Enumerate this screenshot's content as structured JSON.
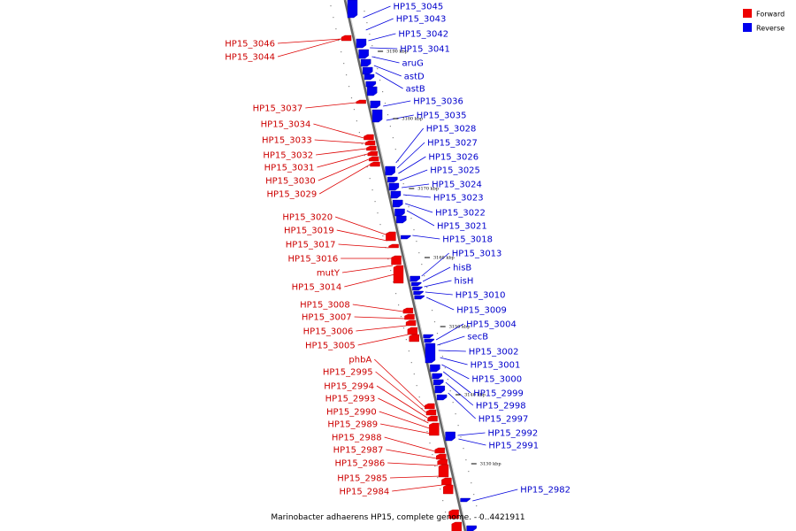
{
  "caption": "Marinobacter adhaerens HP15, complete genome. - 0..4421911",
  "legend": [
    {
      "label": "Forward",
      "color": "#ee0000"
    },
    {
      "label": "Reverse",
      "color": "#0000ee"
    }
  ],
  "scale_ticks": [
    "3190 kbp",
    "3180 kbp",
    "3170 kbp",
    "3160 kbp",
    "3150 kbp",
    "3140 kbp",
    "3130 kbp"
  ],
  "forward_genes": [
    "HP15_3046",
    "HP15_3044",
    "HP15_3037",
    "HP15_3034",
    "HP15_3033",
    "HP15_3032",
    "HP15_3031",
    "HP15_3030",
    "HP15_3029",
    "HP15_3020",
    "HP15_3019",
    "HP15_3017",
    "HP15_3016",
    "mutY",
    "HP15_3014",
    "HP15_3008",
    "HP15_3007",
    "HP15_3006",
    "HP15_3005",
    "phbA",
    "HP15_2995",
    "HP15_2994",
    "HP15_2993",
    "HP15_2990",
    "HP15_2989",
    "HP15_2988",
    "HP15_2987",
    "HP15_2986",
    "HP15_2985",
    "HP15_2984"
  ],
  "reverse_genes": [
    "HP15_3045",
    "HP15_3043",
    "HP15_3042",
    "HP15_3041",
    "aruG",
    "astD",
    "astB",
    "HP15_3036",
    "HP15_3035",
    "HP15_3028",
    "HP15_3027",
    "HP15_3026",
    "HP15_3025",
    "HP15_3024",
    "HP15_3023",
    "HP15_3022",
    "HP15_3021",
    "HP15_3018",
    "HP15_3013",
    "hisB",
    "hisH",
    "HP15_3010",
    "HP15_3009",
    "HP15_3004",
    "secB",
    "HP15_3002",
    "HP15_3001",
    "HP15_3000",
    "HP15_2999",
    "HP15_2998",
    "HP15_2997",
    "HP15_2992",
    "HP15_2991",
    "HP15_2982"
  ]
}
